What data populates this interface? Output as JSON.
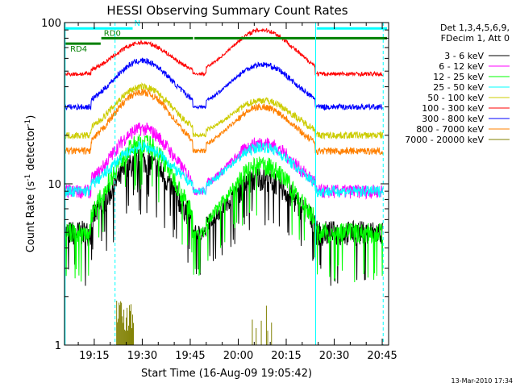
{
  "chart_data": {
    "type": "line",
    "title": "HESSI Observing Summary Count Rates",
    "xlabel": "Start Time (16-Aug-09 19:05:42)",
    "ylabel_main": "Count Rate (s",
    "ylabel_sup1": "-1",
    "ylabel_mid": " detector",
    "ylabel_sup2": "-1",
    "ylabel_end": ")",
    "y_scale": "log",
    "xlim_minutes": [
      1145.7,
      1247.0
    ],
    "ylim": [
      1,
      100
    ],
    "x_ticks": [
      {
        "label": "19:15",
        "minutes": 1155
      },
      {
        "label": "19:30",
        "minutes": 1170
      },
      {
        "label": "19:45",
        "minutes": 1185
      },
      {
        "label": "20:00",
        "minutes": 1200
      },
      {
        "label": "20:15",
        "minutes": 1215
      },
      {
        "label": "20:30",
        "minutes": 1230
      },
      {
        "label": "20:45",
        "minutes": 1245
      }
    ],
    "y_ticks": [
      {
        "label": "1",
        "value": 1
      },
      {
        "label": "10",
        "value": 10
      },
      {
        "label": "100",
        "value": 100
      }
    ],
    "legend_header": [
      "Det 1,3,4,5,6,9,",
      "FDecim 1, Att 0"
    ],
    "legend_position": "right",
    "series": [
      {
        "name": "3 - 6 keV",
        "color": "#000000",
        "night": 5,
        "peak1": 14,
        "peak2": 11,
        "noise": 0.18
      },
      {
        "name": "6 - 12 keV",
        "color": "#ff00ff",
        "night": 9,
        "peak1": 22,
        "peak2": 18,
        "noise": 0.1
      },
      {
        "name": "12 - 25 keV",
        "color": "#00ff00",
        "night": 5,
        "peak1": 18,
        "peak2": 13,
        "noise": 0.14
      },
      {
        "name": "25 - 50 keV",
        "color": "#00ffff",
        "night": 9,
        "peak1": 17,
        "peak2": 17,
        "noise": 0.08
      },
      {
        "name": "50 - 100 keV",
        "color": "#cccc00",
        "night": 20,
        "peak1": 40,
        "peak2": 33,
        "noise": 0.05
      },
      {
        "name": "100 - 300 keV",
        "color": "#ff0000",
        "night": 48,
        "peak1": 75,
        "peak2": 90,
        "noise": 0.03
      },
      {
        "name": "300 - 800 keV",
        "color": "#0000ff",
        "night": 30,
        "peak1": 58,
        "peak2": 55,
        "noise": 0.04
      },
      {
        "name": "800 - 7000 keV",
        "color": "#ff8000",
        "night": 16,
        "peak1": 37,
        "peak2": 30,
        "noise": 0.05
      },
      {
        "name": "7000 - 20000 keV",
        "color": "#808000",
        "night": 1,
        "peak1": 1.9,
        "peak2": 1.8,
        "noise": 0
      }
    ],
    "flags": [
      {
        "name": "N",
        "color": "#00ffff",
        "y": 92
      },
      {
        "name": "RD0",
        "color": "#008000",
        "y": 80
      },
      {
        "name": "RD4",
        "color": "#008000",
        "y": 74
      }
    ],
    "vertical_lines_minutes": [
      1145.9,
      1224.2,
      1245.3
    ],
    "dashed_lines_minutes": [
      1161.5,
      1245.3
    ],
    "timestamp": "13-Mar-2010 17:34"
  }
}
